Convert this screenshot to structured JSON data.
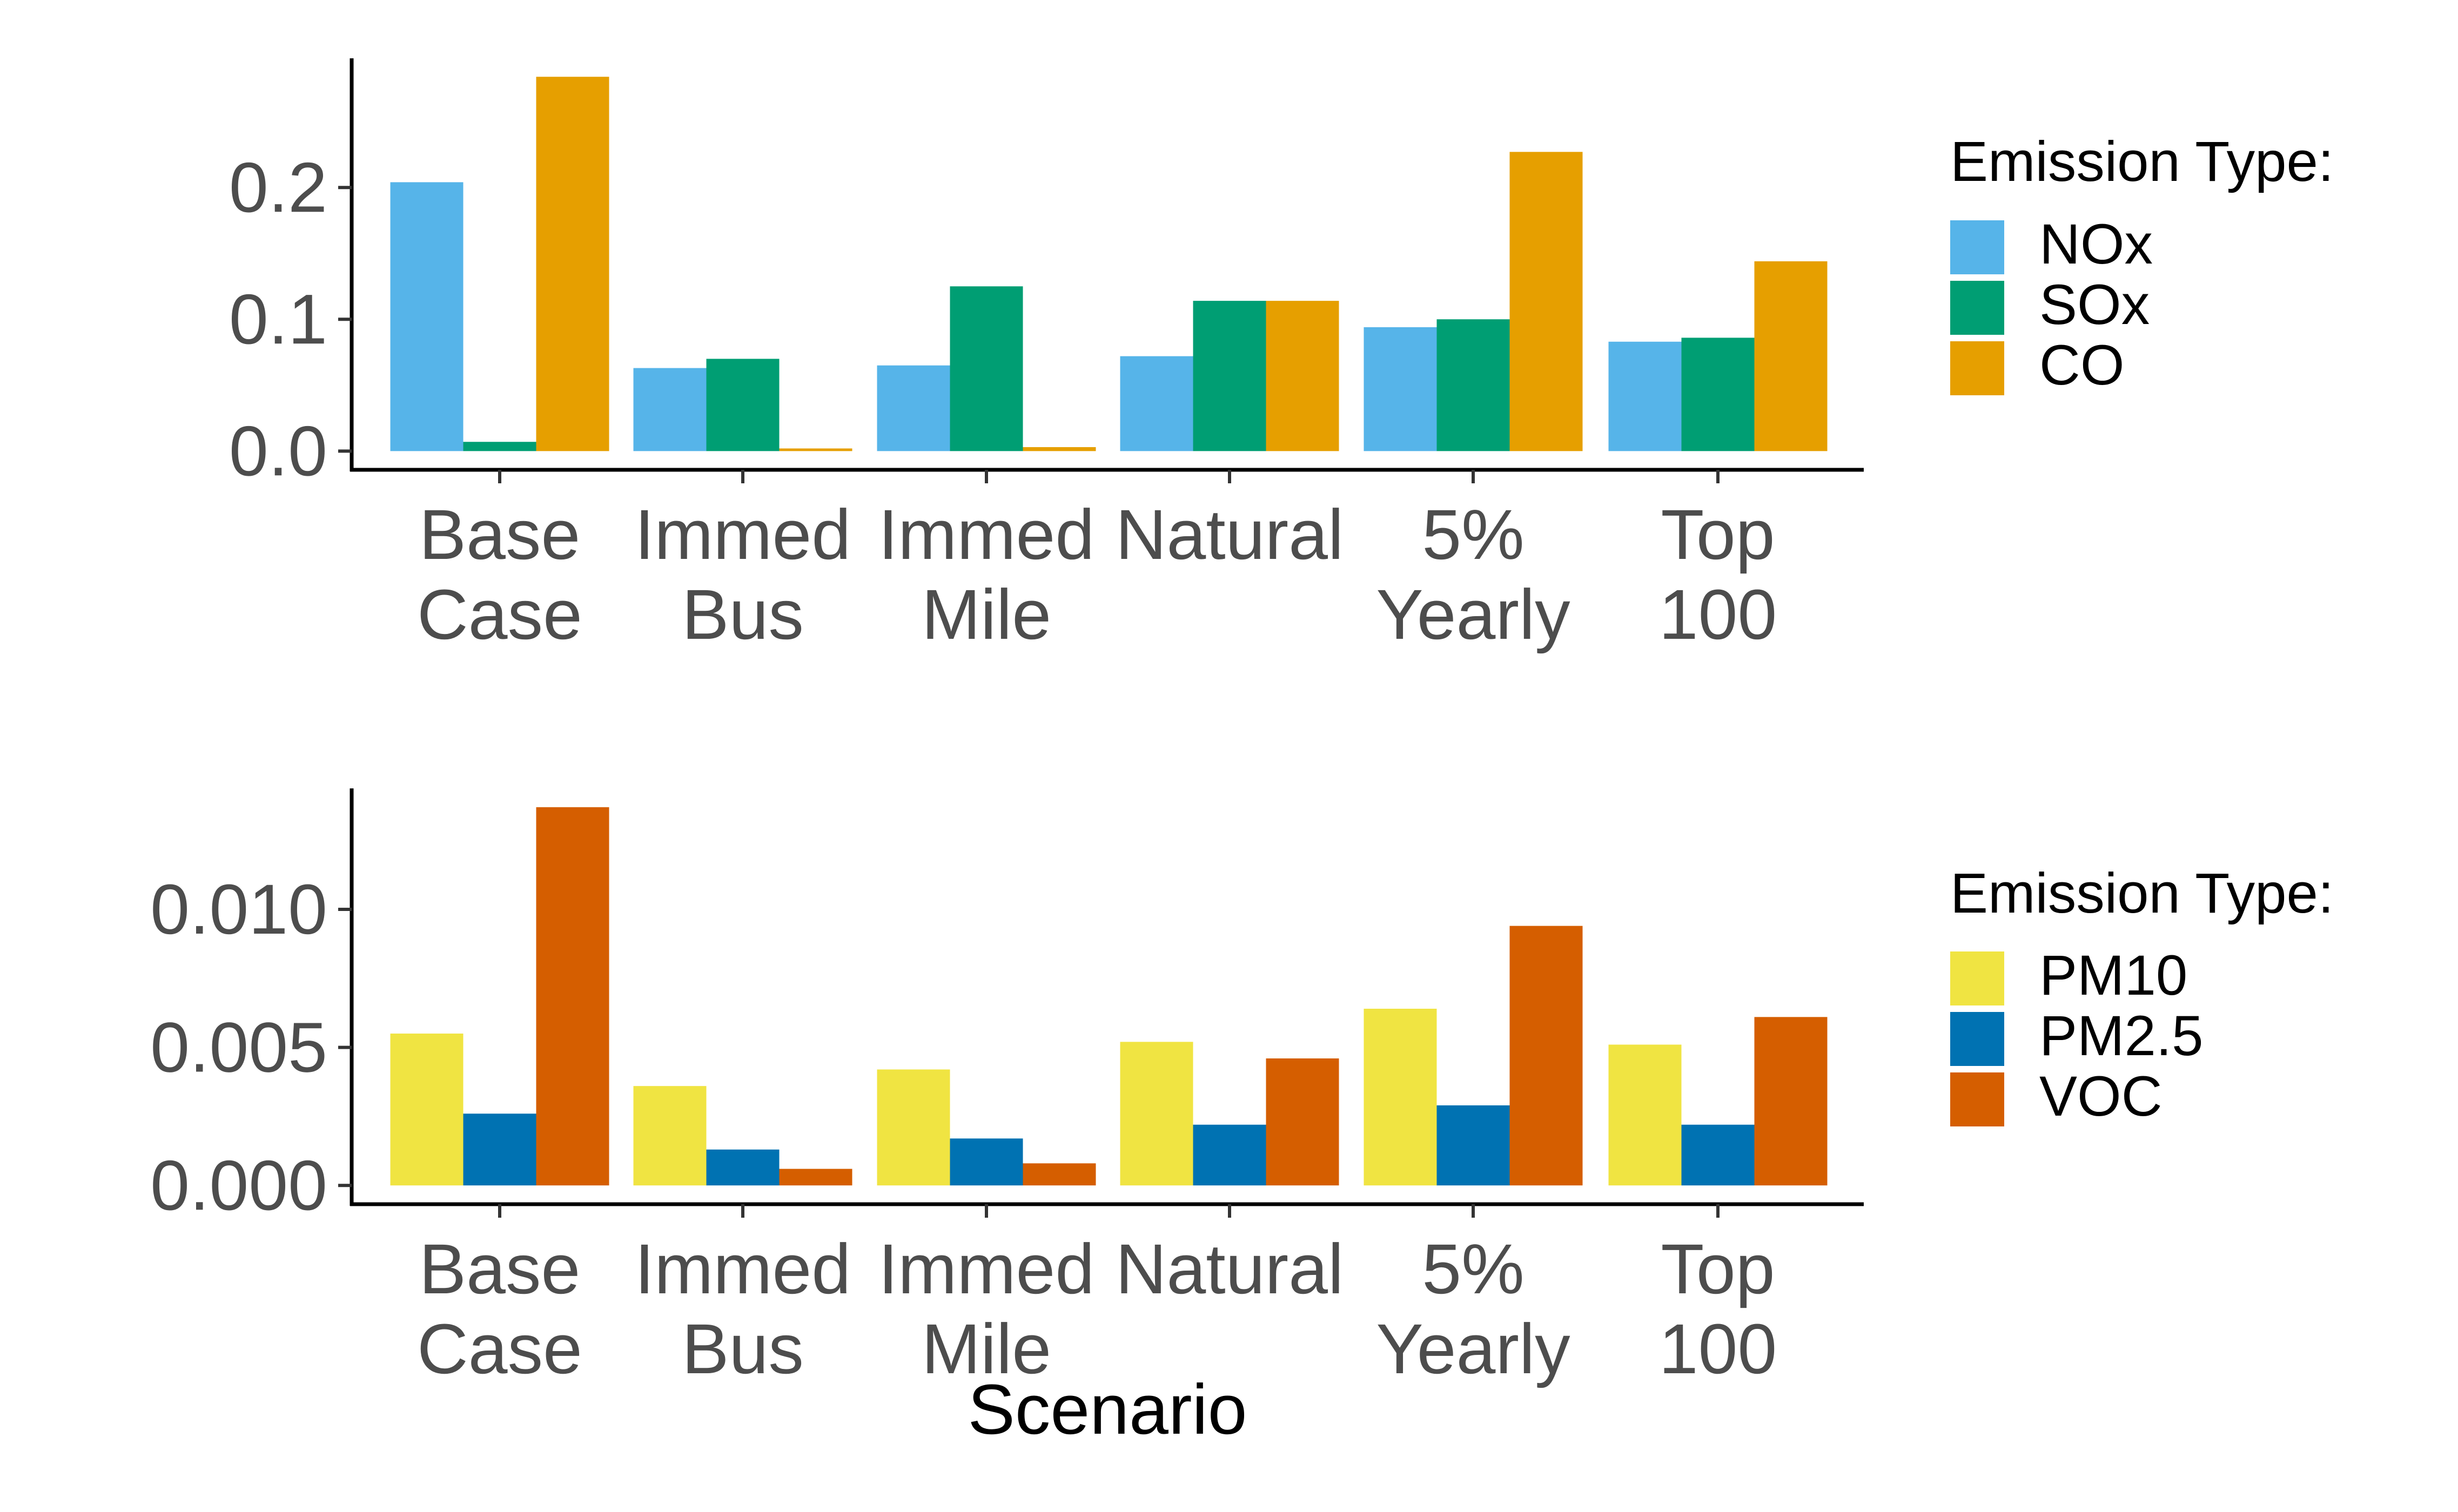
{
  "x_axis_title": "Scenario",
  "chart_data": [
    {
      "type": "bar",
      "categories": [
        [
          "Base",
          "Case"
        ],
        [
          "Immed",
          "Bus"
        ],
        [
          "Immed",
          "Mile"
        ],
        [
          "Natural"
        ],
        [
          "5%",
          "Yearly"
        ],
        [
          "Top",
          "100"
        ]
      ],
      "series": [
        {
          "name": "NOx",
          "color": "#56b4e9",
          "values": [
            0.204,
            0.063,
            0.065,
            0.072,
            0.094,
            0.083
          ]
        },
        {
          "name": "SOx",
          "color": "#009e73",
          "values": [
            0.007,
            0.07,
            0.125,
            0.114,
            0.1,
            0.086
          ]
        },
        {
          "name": "CO",
          "color": "#e69f00",
          "values": [
            0.284,
            0.002,
            0.003,
            0.114,
            0.227,
            0.144
          ]
        }
      ],
      "yticks": [
        "0.0",
        "0.1",
        "0.2"
      ],
      "ytick_values": [
        0,
        0.1,
        0.2
      ],
      "ylim": [
        -0.0142,
        0.298
      ],
      "legend_title": "Emission Type:",
      "legend_position": "right"
    },
    {
      "type": "bar",
      "categories": [
        [
          "Base",
          "Case"
        ],
        [
          "Immed",
          "Bus"
        ],
        [
          "Immed",
          "Mile"
        ],
        [
          "Natural"
        ],
        [
          "5%",
          "Yearly"
        ],
        [
          "Top",
          "100"
        ]
      ],
      "series": [
        {
          "name": "PM10",
          "color": "#f0e442",
          "values": [
            0.0055,
            0.0036,
            0.0042,
            0.0052,
            0.0064,
            0.0051
          ]
        },
        {
          "name": "PM2.5",
          "color": "#0072b2",
          "values": [
            0.0026,
            0.0013,
            0.0017,
            0.0022,
            0.0029,
            0.0022
          ]
        },
        {
          "name": "VOC",
          "color": "#d55e00",
          "values": [
            0.0137,
            0.0006,
            0.0008,
            0.0046,
            0.0094,
            0.0061
          ]
        }
      ],
      "yticks": [
        "0.000",
        "0.005",
        "0.010"
      ],
      "ytick_values": [
        0,
        0.005,
        0.01
      ],
      "ylim": [
        -0.00068,
        0.01438
      ],
      "xlabel": "Scenario",
      "legend_title": "Emission Type:",
      "legend_position": "right"
    }
  ]
}
